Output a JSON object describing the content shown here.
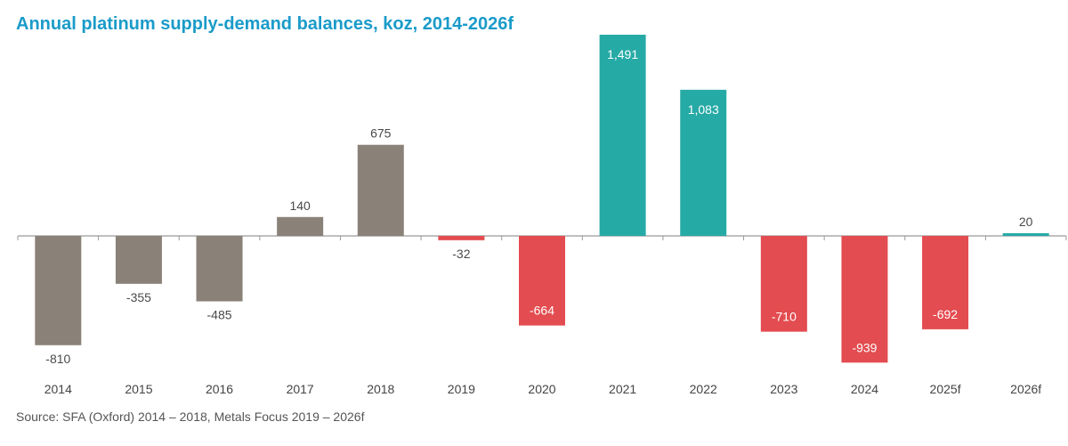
{
  "chart_data": {
    "type": "bar",
    "title": "Annual platinum supply-demand balances, koz, 2014-2026f",
    "xlabel": "",
    "ylabel": "",
    "categories": [
      "2014",
      "2015",
      "2016",
      "2017",
      "2018",
      "2019",
      "2020",
      "2021",
      "2022",
      "2023",
      "2024",
      "2025f",
      "2026f"
    ],
    "values": [
      -810,
      -355,
      -485,
      140,
      675,
      -32,
      -664,
      1491,
      1083,
      -710,
      -939,
      -692,
      20
    ],
    "data_labels": [
      "-810",
      "-355",
      "-485",
      "140",
      "675",
      "-32",
      "-664",
      "1,491",
      "1,083",
      "-710",
      "-939",
      "-692",
      "20"
    ],
    "colors": [
      "#8a8178",
      "#8a8178",
      "#8a8178",
      "#8a8178",
      "#8a8178",
      "#e34c50",
      "#e34c50",
      "#26aaa6",
      "#26aaa6",
      "#e34c50",
      "#e34c50",
      "#e34c50",
      "#26aaa6"
    ],
    "label_inside": [
      false,
      false,
      false,
      false,
      false,
      false,
      true,
      true,
      true,
      true,
      true,
      true,
      false
    ],
    "ylim": [
      -1000,
      1600
    ],
    "grid": false,
    "legend": "none",
    "source": "Source: SFA (Oxford) 2014 – 2018,  Metals Focus 2019 – 2026f"
  }
}
